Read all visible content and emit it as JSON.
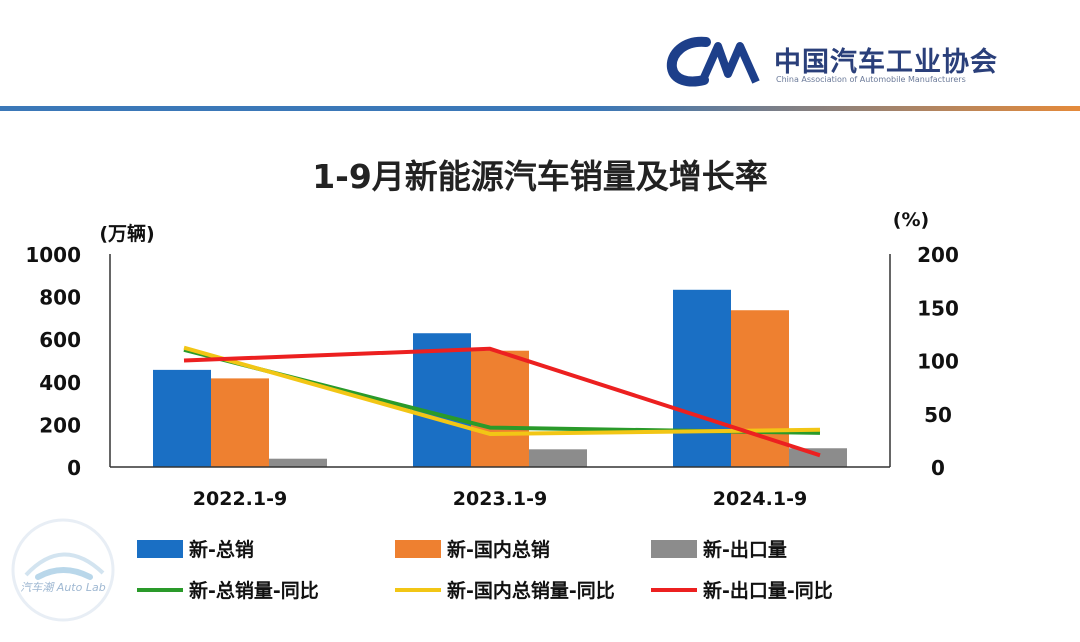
{
  "header": {
    "logo_text": "中国汽车工业协会",
    "logo_subtext": "China Association of Automobile Manufacturers"
  },
  "watermark": {
    "text": "汽车潮 Auto Lab"
  },
  "colors": {
    "total": "#1a6fc4",
    "domestic": "#ee8030",
    "export": "#8c8c8c",
    "total_yoy": "#2a9a2a",
    "domestic_yoy": "#f2c615",
    "export_yoy": "#ec2020"
  },
  "chart_data": {
    "type": "bar",
    "title": "1-9月新能源汽车销量及增长率",
    "ylabel_left": "(万辆)",
    "ylabel_right": "(%)",
    "ylim_left": [
      0,
      1000
    ],
    "yticks_left": [
      "0",
      "200",
      "400",
      "600",
      "800",
      "1000"
    ],
    "ylim_right": [
      0,
      200
    ],
    "yticks_right": [
      "0",
      "50",
      "100",
      "150",
      "200"
    ],
    "categories": [
      "2022.1-9",
      "2023.1-9",
      "2024.1-9"
    ],
    "bar_series": [
      {
        "name": "新-总销",
        "color_key": "total",
        "values": [
          456,
          628,
          832
        ]
      },
      {
        "name": "新-国内总销",
        "color_key": "domestic",
        "values": [
          416,
          546,
          736
        ]
      },
      {
        "name": "新-出口量",
        "color_key": "export",
        "values": [
          39,
          83,
          88
        ]
      }
    ],
    "line_series": [
      {
        "name": "新-总销量-同比",
        "color_key": "total_yoy",
        "values": [
          110,
          37,
          32
        ]
      },
      {
        "name": "新-国内总销量-同比",
        "color_key": "domestic_yoy",
        "values": [
          112,
          31,
          35
        ]
      },
      {
        "name": "新-出口量-同比",
        "color_key": "export_yoy",
        "values": [
          100,
          111,
          11
        ]
      }
    ],
    "legend": [
      "新-总销",
      "新-国内总销",
      "新-出口量",
      "新-总销量-同比",
      "新-国内总销量-同比",
      "新-出口量-同比"
    ]
  }
}
